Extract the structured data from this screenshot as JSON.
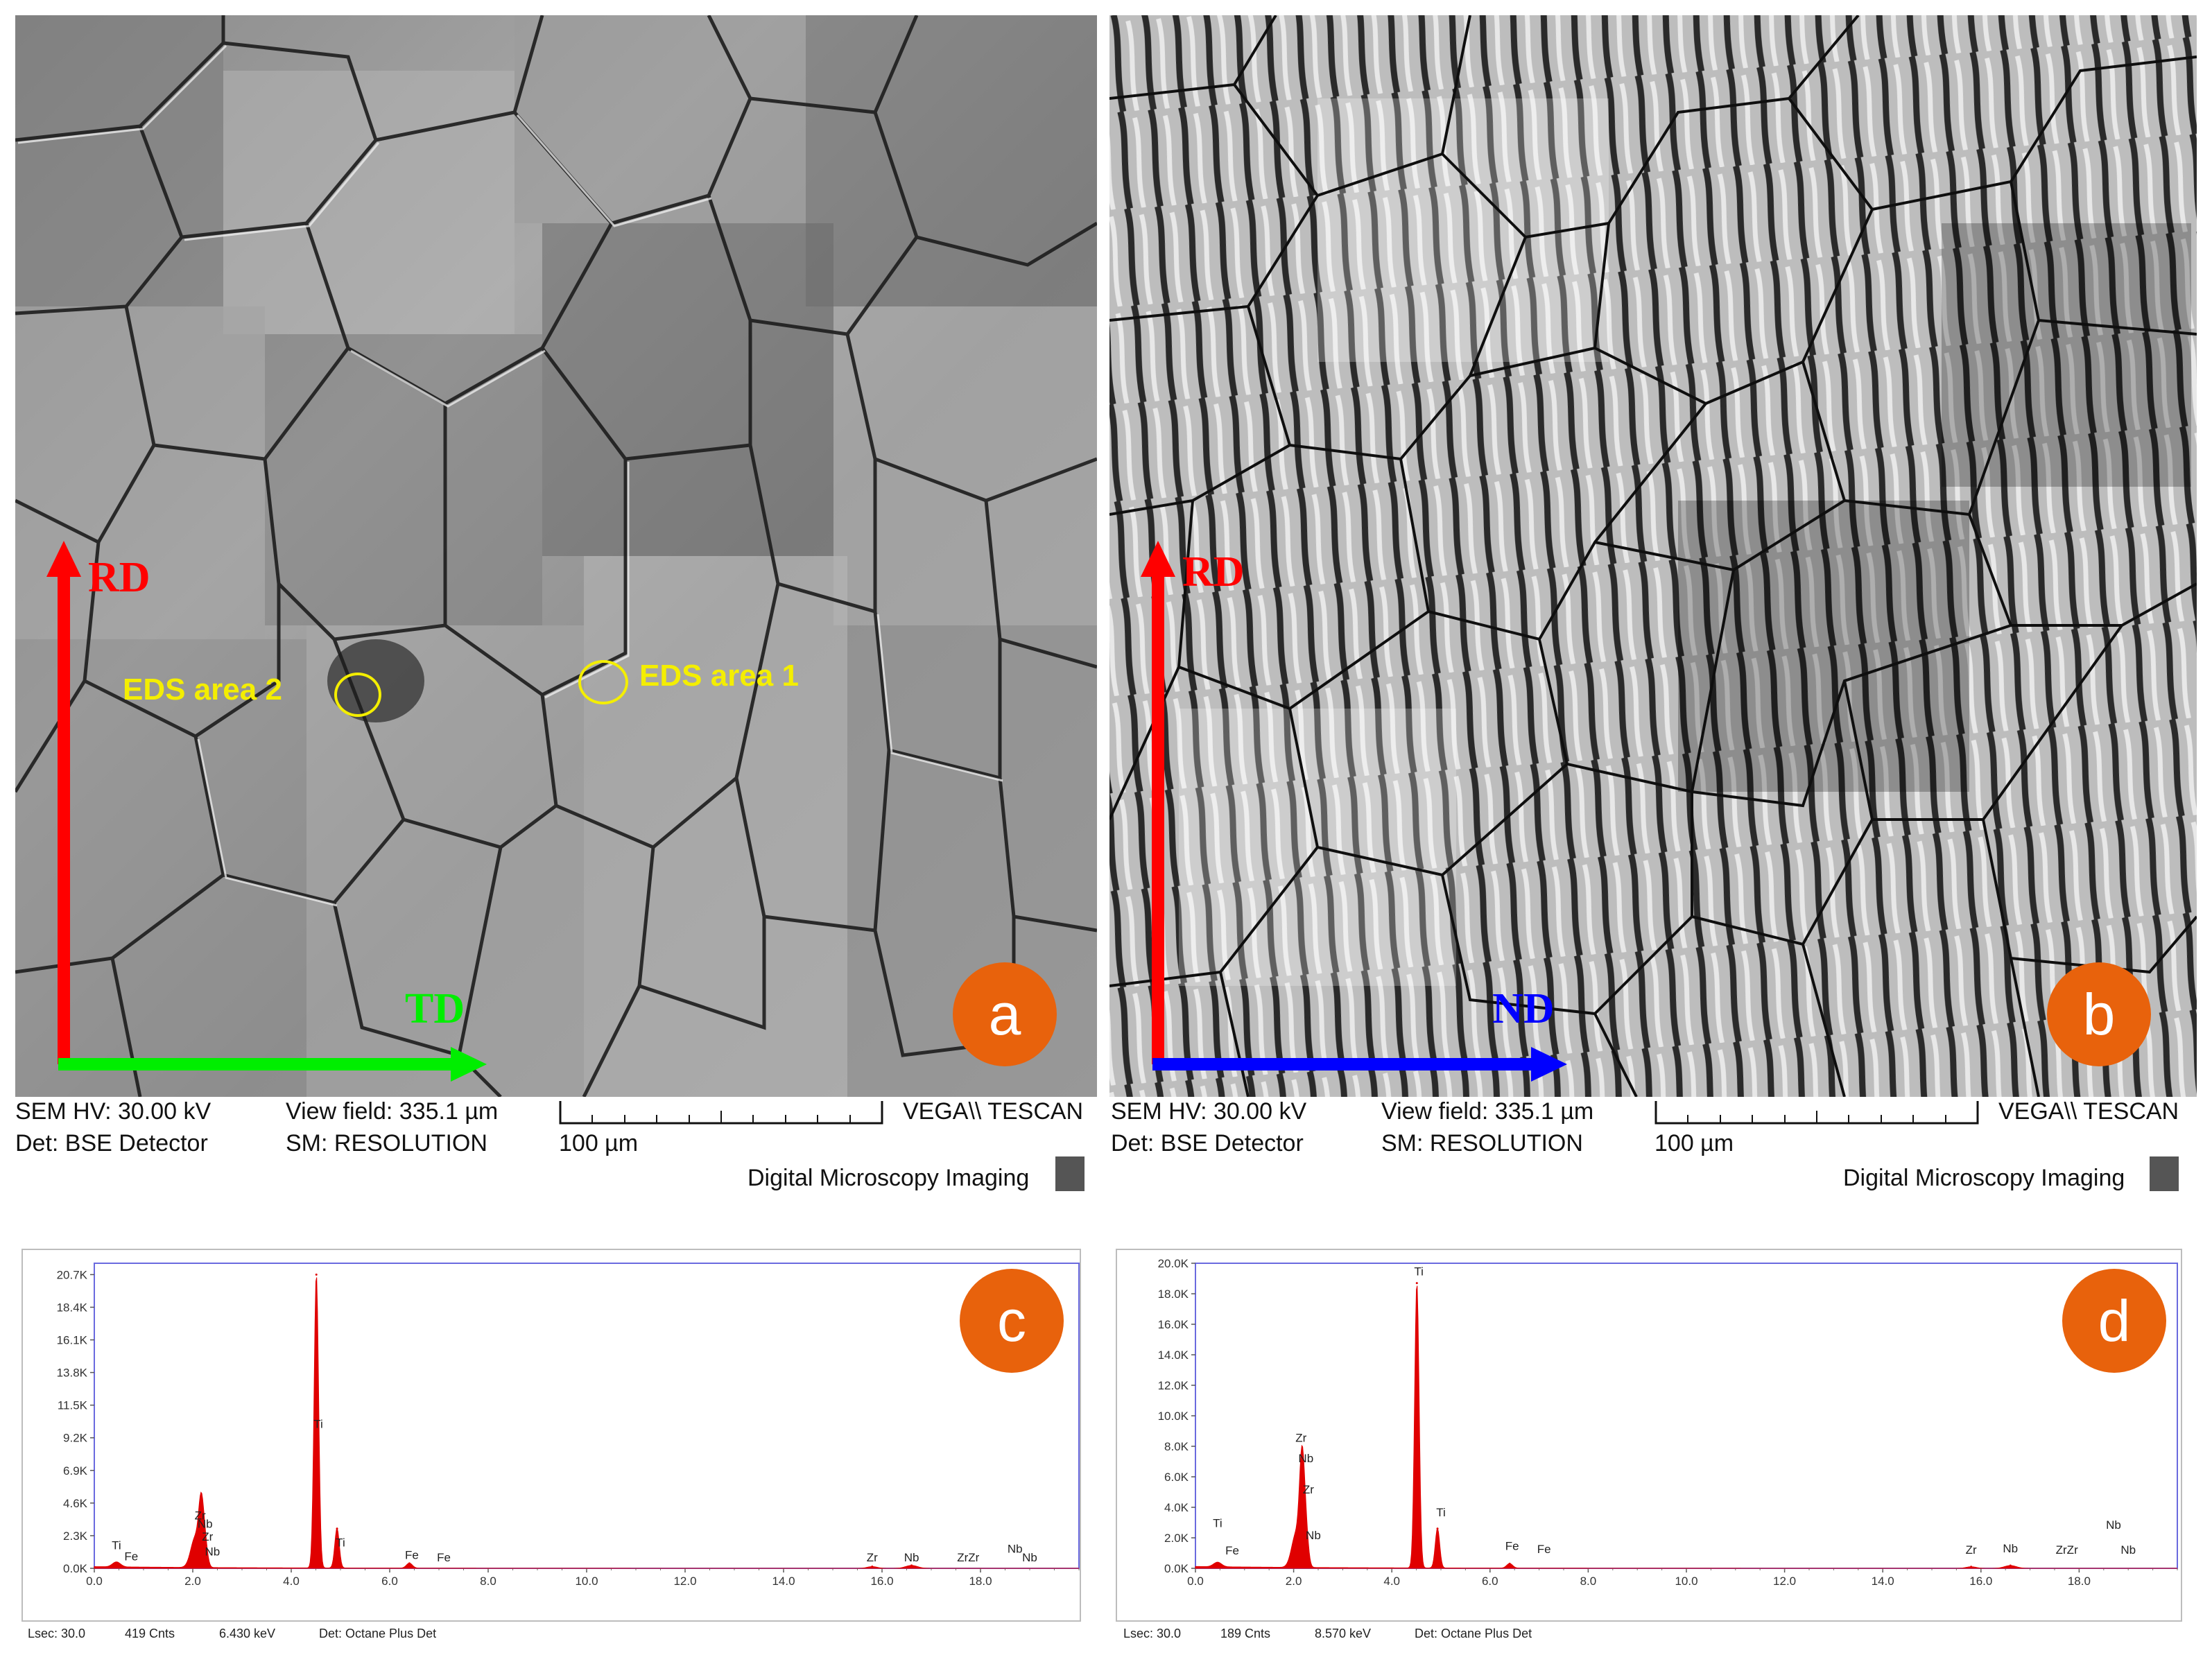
{
  "panels": {
    "a": {
      "badge": "a",
      "vertical_axis": "RD",
      "horizontal_axis": "TD",
      "eds_area_1": "EDS area 1",
      "eds_area_2": "EDS area 2",
      "sem_hv": "SEM HV: 30.00 kV",
      "det": "Det: BSE Detector",
      "view_field": "View field: 335.1 µm",
      "sm": "SM: RESOLUTION",
      "scale": "100 µm",
      "brand": "VEGA\\\\ TESCAN",
      "footer": "Digital Microscopy Imaging"
    },
    "b": {
      "badge": "b",
      "vertical_axis": "RD",
      "horizontal_axis": "ND",
      "sem_hv": "SEM HV: 30.00 kV",
      "det": "Det: BSE Detector",
      "view_field": "View field: 335.1 µm",
      "sm": "SM: RESOLUTION",
      "scale": "100 µm",
      "brand": "VEGA\\\\ TESCAN",
      "footer": "Digital Microscopy Imaging"
    }
  },
  "colors": {
    "rd_arrow": "#ff0000",
    "td_arrow": "#00ee00",
    "nd_arrow": "#0000ff",
    "badge": "#e8620c",
    "eds_marker": "#f4ee00",
    "spectrum_fill": "#e00000",
    "spectrum_frame": "#6a6adf"
  },
  "chart_data": [
    {
      "type": "area",
      "id": "c",
      "badge": "c",
      "x_ticks": [
        "0.0",
        "2.0",
        "4.0",
        "6.0",
        "8.0",
        "10.0",
        "12.0",
        "14.0",
        "16.0",
        "18.0"
      ],
      "y_ticks": [
        "0.0K",
        "2.3K",
        "4.6K",
        "6.9K",
        "9.2K",
        "11.5K",
        "13.8K",
        "16.1K",
        "18.4K",
        "20.7K"
      ],
      "xlim": [
        0,
        20
      ],
      "ylim": [
        0,
        21.5
      ],
      "peaks": [
        {
          "x": 0.45,
          "y": 0.35,
          "w": 0.08
        },
        {
          "x": 2.05,
          "y": 2.1,
          "w": 0.09
        },
        {
          "x": 2.17,
          "y": 4.0,
          "w": 0.05
        },
        {
          "x": 2.25,
          "y": 1.6,
          "w": 0.05
        },
        {
          "x": 4.51,
          "y": 20.7,
          "w": 0.045
        },
        {
          "x": 4.93,
          "y": 2.8,
          "w": 0.045
        },
        {
          "x": 6.4,
          "y": 0.35,
          "w": 0.06
        },
        {
          "x": 15.8,
          "y": 0.12,
          "w": 0.1
        },
        {
          "x": 16.6,
          "y": 0.2,
          "w": 0.12
        }
      ],
      "element_labels": [
        {
          "text": "Ti",
          "x": 0.45,
          "y": 1.35
        },
        {
          "text": "Fe",
          "x": 0.75,
          "y": 0.55
        },
        {
          "text": "Zr",
          "x": 2.15,
          "y": 3.45
        },
        {
          "text": "Nb",
          "x": 2.25,
          "y": 2.85
        },
        {
          "text": "Zr",
          "x": 2.3,
          "y": 1.95
        },
        {
          "text": "Nb",
          "x": 2.4,
          "y": 0.9
        },
        {
          "text": "Ti",
          "x": 4.55,
          "y": 9.9
        },
        {
          "text": "Ti",
          "x": 5.0,
          "y": 1.55
        },
        {
          "text": "Fe",
          "x": 6.45,
          "y": 0.65
        },
        {
          "text": "Fe",
          "x": 7.1,
          "y": 0.5
        },
        {
          "text": "Zr",
          "x": 15.8,
          "y": 0.5
        },
        {
          "text": "Nb",
          "x": 16.6,
          "y": 0.5
        },
        {
          "text": "ZrZr",
          "x": 17.75,
          "y": 0.5
        },
        {
          "text": "Nb",
          "x": 18.7,
          "y": 1.1
        },
        {
          "text": "Nb",
          "x": 19.0,
          "y": 0.5
        }
      ],
      "footer": {
        "lsec": "Lsec: 30.0",
        "cnts": "419 Cnts",
        "kev": "6.430 keV",
        "det": "Det: Octane Plus Det"
      }
    },
    {
      "type": "area",
      "id": "d",
      "badge": "d",
      "x_ticks": [
        "0.0",
        "2.0",
        "4.0",
        "6.0",
        "8.0",
        "10.0",
        "12.0",
        "14.0",
        "16.0",
        "18.0"
      ],
      "y_ticks": [
        "0.0K",
        "2.0K",
        "4.0K",
        "6.0K",
        "8.0K",
        "10.0K",
        "12.0K",
        "14.0K",
        "16.0K",
        "18.0K",
        "20.0K"
      ],
      "xlim": [
        0,
        20
      ],
      "ylim": [
        0,
        20
      ],
      "peaks": [
        {
          "x": 0.45,
          "y": 0.3,
          "w": 0.08
        },
        {
          "x": 2.05,
          "y": 2.2,
          "w": 0.09
        },
        {
          "x": 2.17,
          "y": 6.5,
          "w": 0.05
        },
        {
          "x": 2.25,
          "y": 2.2,
          "w": 0.05
        },
        {
          "x": 4.51,
          "y": 18.7,
          "w": 0.045
        },
        {
          "x": 4.93,
          "y": 2.6,
          "w": 0.045
        },
        {
          "x": 6.4,
          "y": 0.3,
          "w": 0.06
        },
        {
          "x": 15.8,
          "y": 0.1,
          "w": 0.1
        },
        {
          "x": 16.6,
          "y": 0.18,
          "w": 0.12
        }
      ],
      "element_labels": [
        {
          "text": "Ti",
          "x": 0.45,
          "y": 2.7
        },
        {
          "text": "Fe",
          "x": 0.75,
          "y": 0.9
        },
        {
          "text": "Zr",
          "x": 2.15,
          "y": 8.3
        },
        {
          "text": "Nb",
          "x": 2.25,
          "y": 6.95
        },
        {
          "text": "Zr",
          "x": 2.3,
          "y": 4.9
        },
        {
          "text": "Nb",
          "x": 2.4,
          "y": 1.9
        },
        {
          "text": "Ti",
          "x": 4.55,
          "y": 19.2
        },
        {
          "text": "Ti",
          "x": 5.0,
          "y": 3.4
        },
        {
          "text": "Fe",
          "x": 6.45,
          "y": 1.2
        },
        {
          "text": "Fe",
          "x": 7.1,
          "y": 1.0
        },
        {
          "text": "Zr",
          "x": 15.8,
          "y": 0.95
        },
        {
          "text": "Nb",
          "x": 16.6,
          "y": 1.05
        },
        {
          "text": "ZrZr",
          "x": 17.75,
          "y": 0.95
        },
        {
          "text": "Nb",
          "x": 18.7,
          "y": 2.6
        },
        {
          "text": "Nb",
          "x": 19.0,
          "y": 0.95
        }
      ],
      "footer": {
        "lsec": "Lsec: 30.0",
        "cnts": "189 Cnts",
        "kev": "8.570 keV",
        "det": "Det: Octane Plus Det"
      }
    }
  ]
}
